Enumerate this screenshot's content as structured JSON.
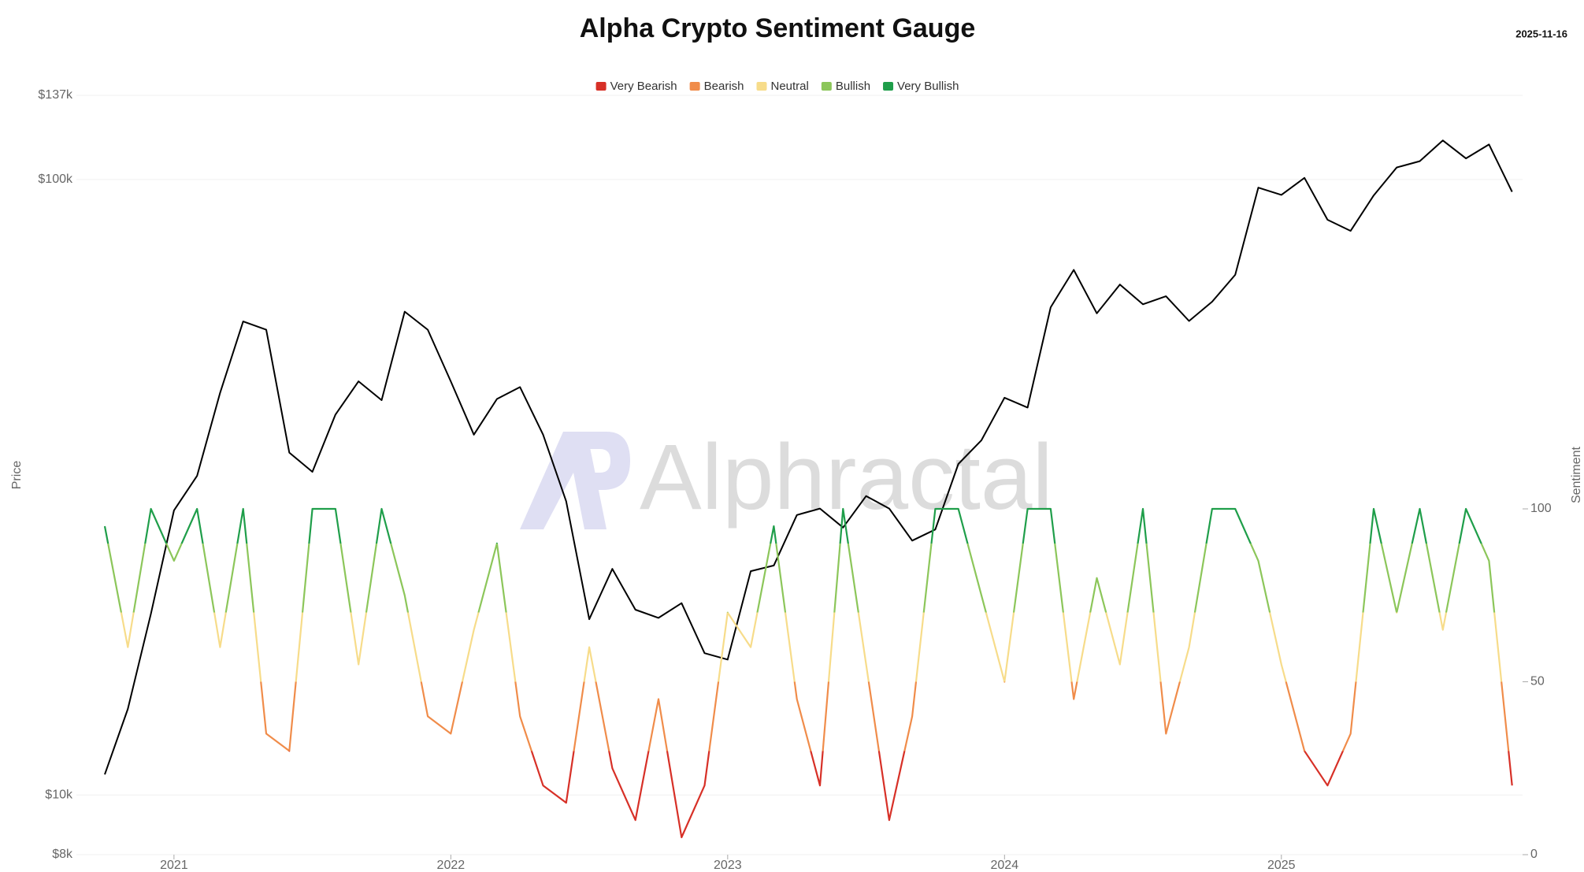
{
  "watermark": "Alphractal",
  "chart_data": {
    "type": "line",
    "title": "Alpha Crypto Sentiment Gauge",
    "subtitle": "2025-11-16",
    "categories": [
      null,
      null,
      null,
      "2021",
      null,
      null,
      null,
      null,
      null,
      null,
      null,
      null,
      null,
      null,
      null,
      "2022",
      null,
      null,
      null,
      null,
      null,
      null,
      null,
      null,
      null,
      null,
      null,
      "2023",
      null,
      null,
      null,
      null,
      null,
      null,
      null,
      null,
      null,
      null,
      null,
      "2024",
      null,
      null,
      null,
      null,
      null,
      null,
      null,
      null,
      null,
      null,
      null,
      "2025",
      null,
      null,
      null,
      null,
      null,
      null,
      null,
      null,
      null,
      null
    ],
    "series": [
      {
        "name": "Price",
        "color": "#000000",
        "values": [
          10800,
          13800,
          19700,
          29000,
          33000,
          45000,
          58800,
          57000,
          36000,
          33500,
          41500,
          47000,
          43800,
          61000,
          57000,
          47000,
          38500,
          44000,
          46000,
          38500,
          30000,
          19300,
          23300,
          20000,
          19400,
          20500,
          17000,
          16600,
          23100,
          23600,
          28500,
          29200,
          27200,
          30600,
          29200,
          25900,
          27000,
          34500,
          37700,
          44200,
          42600,
          62000,
          71300,
          60600,
          67500,
          62700,
          64600,
          58900,
          63300,
          70000,
          97000,
          94400,
          100600,
          86000,
          82500,
          94200,
          104600,
          107100,
          115700,
          108200,
          114000,
          95500
        ]
      },
      {
        "name": "Sentiment",
        "axis": "y2",
        "values": [
          95,
          60,
          100,
          85,
          100,
          60,
          100,
          35,
          30,
          100,
          100,
          55,
          100,
          75,
          40,
          35,
          65,
          90,
          40,
          20,
          15,
          60,
          25,
          10,
          45,
          5,
          20,
          70,
          60,
          95,
          45,
          20,
          100,
          55,
          10,
          40,
          100,
          100,
          75,
          50,
          100,
          100,
          45,
          80,
          55,
          100,
          35,
          60,
          100,
          100,
          85,
          55,
          30,
          20,
          35,
          100,
          70,
          100,
          65,
          100,
          85,
          20
        ]
      }
    ],
    "legend": [
      {
        "name": "Very Bearish",
        "color": "#d73027"
      },
      {
        "name": "Bearish",
        "color": "#f08c4a"
      },
      {
        "name": "Neutral",
        "color": "#f7dc8a"
      },
      {
        "name": "Bullish",
        "color": "#8cc65a"
      },
      {
        "name": "Very Bullish",
        "color": "#1f9e4a"
      }
    ],
    "log_scale": true,
    "grid": true,
    "ylim": [
      8000,
      137000
    ],
    "yticks": [
      {
        "value": 8000,
        "label": "$8k"
      },
      {
        "value": 10000,
        "label": "$10k"
      },
      {
        "value": 100000,
        "label": "$100k"
      },
      {
        "value": 137000,
        "label": "$137k"
      }
    ],
    "y2lim": [
      0,
      100
    ],
    "y2ticks": [
      0,
      50,
      100
    ]
  }
}
